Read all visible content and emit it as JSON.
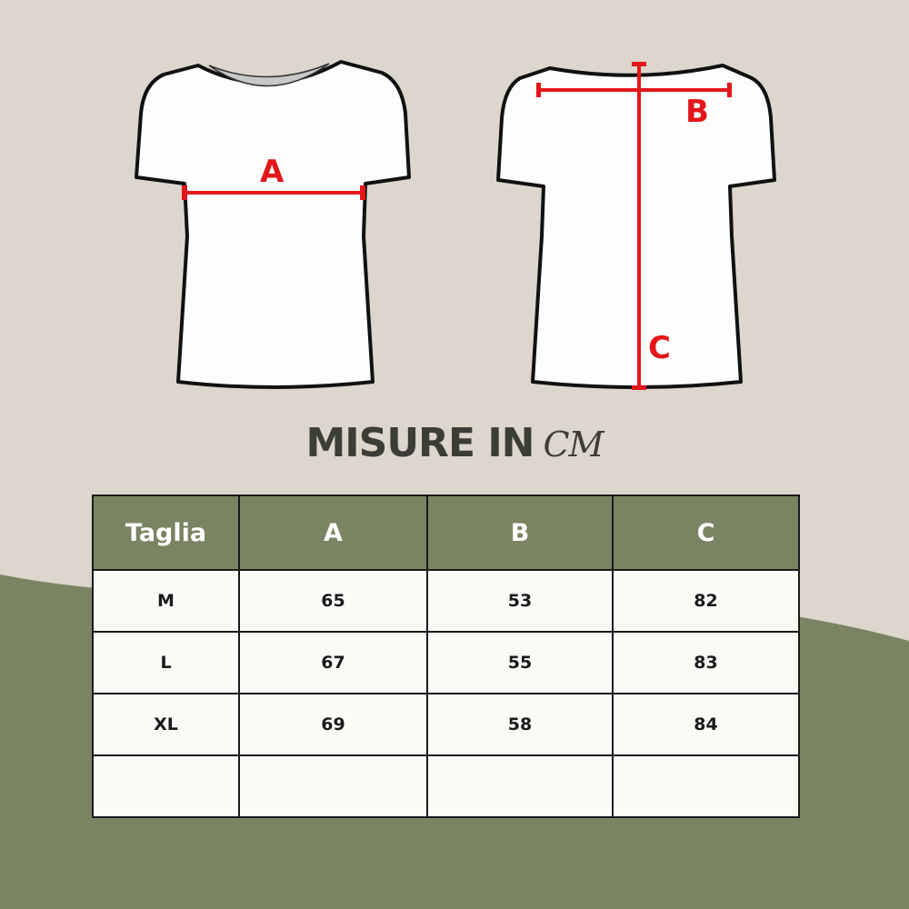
{
  "title": {
    "main": "MISURE IN",
    "unit": "CM"
  },
  "diagram": {
    "front_label": "A",
    "back_labels": [
      "B",
      "C"
    ],
    "measure_color": "#e3161b"
  },
  "colors": {
    "background": "#dcd6cc",
    "accent_green": "#7a8462"
  },
  "table": {
    "headers": [
      "Taglia",
      "A",
      "B",
      "C"
    ],
    "rows": [
      [
        "M",
        "65",
        "53",
        "82"
      ],
      [
        "L",
        "67",
        "55",
        "83"
      ],
      [
        "XL",
        "69",
        "58",
        "84"
      ],
      [
        "",
        "",
        "",
        ""
      ]
    ]
  }
}
